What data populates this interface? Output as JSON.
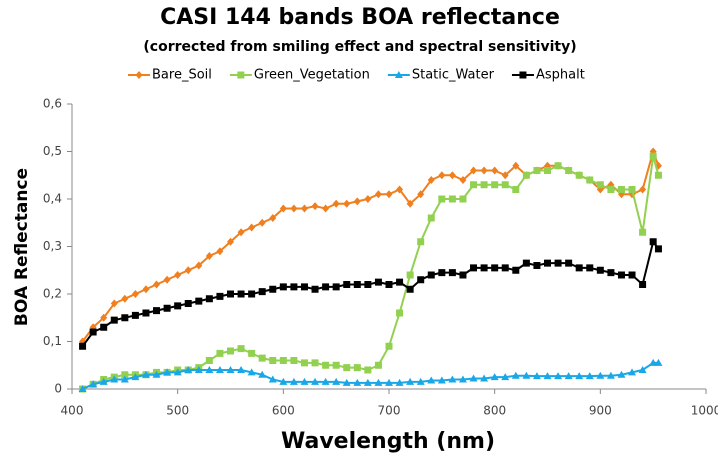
{
  "chart_data": {
    "type": "line",
    "title": "CASI 144 bands BOA reflectance",
    "subtitle": "(corrected from smiling effect and spectral sensitivity)",
    "x_label": "Wavelength (nm)",
    "y_label": "BOA Reflectance",
    "x": [
      410,
      420,
      430,
      440,
      450,
      460,
      470,
      480,
      490,
      500,
      510,
      520,
      530,
      540,
      550,
      560,
      570,
      580,
      590,
      600,
      610,
      620,
      630,
      640,
      650,
      660,
      670,
      680,
      690,
      700,
      710,
      720,
      730,
      740,
      750,
      760,
      770,
      780,
      790,
      800,
      810,
      820,
      830,
      840,
      850,
      860,
      870,
      880,
      890,
      900,
      910,
      920,
      930,
      940,
      950,
      955
    ],
    "series": [
      {
        "name": "Bare_Soil",
        "color": "#f07f1f",
        "marker": "diamond",
        "values": [
          0.1,
          0.13,
          0.15,
          0.18,
          0.19,
          0.2,
          0.21,
          0.22,
          0.23,
          0.24,
          0.25,
          0.26,
          0.28,
          0.29,
          0.31,
          0.33,
          0.34,
          0.35,
          0.36,
          0.38,
          0.38,
          0.38,
          0.385,
          0.38,
          0.39,
          0.39,
          0.395,
          0.4,
          0.41,
          0.41,
          0.42,
          0.39,
          0.41,
          0.44,
          0.45,
          0.45,
          0.44,
          0.46,
          0.46,
          0.46,
          0.45,
          0.47,
          0.45,
          0.46,
          0.47,
          0.47,
          0.46,
          0.45,
          0.44,
          0.42,
          0.43,
          0.41,
          0.41,
          0.42,
          0.5,
          0.47
        ]
      },
      {
        "name": "Green_Vegetation",
        "color": "#92d050",
        "marker": "square",
        "values": [
          0.0,
          0.01,
          0.02,
          0.025,
          0.03,
          0.03,
          0.03,
          0.035,
          0.035,
          0.04,
          0.04,
          0.045,
          0.06,
          0.075,
          0.08,
          0.085,
          0.075,
          0.065,
          0.06,
          0.06,
          0.06,
          0.055,
          0.055,
          0.05,
          0.05,
          0.045,
          0.045,
          0.04,
          0.05,
          0.09,
          0.16,
          0.24,
          0.31,
          0.36,
          0.4,
          0.4,
          0.4,
          0.43,
          0.43,
          0.43,
          0.43,
          0.42,
          0.45,
          0.46,
          0.46,
          0.47,
          0.46,
          0.45,
          0.44,
          0.43,
          0.42,
          0.42,
          0.42,
          0.33,
          0.49,
          0.45
        ]
      },
      {
        "name": "Static_Water",
        "color": "#1aa7e8",
        "marker": "triangle",
        "values": [
          0.0,
          0.01,
          0.015,
          0.02,
          0.02,
          0.025,
          0.03,
          0.03,
          0.035,
          0.035,
          0.04,
          0.04,
          0.04,
          0.04,
          0.04,
          0.04,
          0.035,
          0.03,
          0.02,
          0.015,
          0.015,
          0.015,
          0.015,
          0.015,
          0.015,
          0.013,
          0.013,
          0.013,
          0.013,
          0.013,
          0.013,
          0.015,
          0.015,
          0.018,
          0.018,
          0.02,
          0.02,
          0.022,
          0.022,
          0.025,
          0.025,
          0.028,
          0.028,
          0.027,
          0.027,
          0.027,
          0.027,
          0.027,
          0.027,
          0.028,
          0.028,
          0.03,
          0.035,
          0.04,
          0.055,
          0.055
        ]
      },
      {
        "name": "Asphalt",
        "color": "#000000",
        "marker": "square",
        "values": [
          0.09,
          0.12,
          0.13,
          0.145,
          0.15,
          0.155,
          0.16,
          0.165,
          0.17,
          0.175,
          0.18,
          0.185,
          0.19,
          0.195,
          0.2,
          0.2,
          0.2,
          0.205,
          0.21,
          0.215,
          0.215,
          0.215,
          0.21,
          0.215,
          0.215,
          0.22,
          0.22,
          0.22,
          0.225,
          0.22,
          0.225,
          0.21,
          0.23,
          0.24,
          0.245,
          0.245,
          0.24,
          0.255,
          0.255,
          0.255,
          0.255,
          0.25,
          0.265,
          0.26,
          0.265,
          0.265,
          0.265,
          0.255,
          0.255,
          0.25,
          0.245,
          0.24,
          0.24,
          0.22,
          0.31,
          0.295
        ]
      }
    ],
    "xlim": [
      400,
      1000
    ],
    "xticks": [
      400,
      500,
      600,
      700,
      800,
      900,
      1000
    ],
    "ylim": [
      0,
      0.6
    ],
    "yticks": [
      0,
      {
        "value": 0.1,
        "label": "0,1"
      },
      {
        "value": 0.2,
        "label": "0,2"
      },
      {
        "value": 0.3,
        "label": "0,3"
      },
      {
        "value": 0.4,
        "label": "0,4"
      },
      {
        "value": 0.5,
        "label": "0,5"
      },
      {
        "value": 0.6,
        "label": "0,6"
      }
    ],
    "legend": "top"
  }
}
